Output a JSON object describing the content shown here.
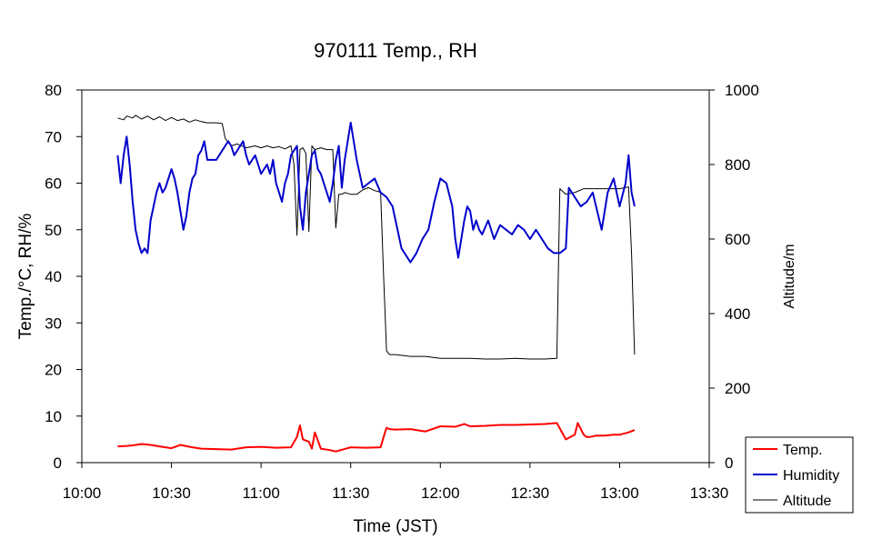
{
  "chart_data": {
    "type": "line",
    "title": "970111 Temp., RH",
    "xlabel": "Time (JST)",
    "ylabel_left": "Temp./°C, RH/%",
    "ylabel_right": "Altitude/m",
    "x_ticks": [
      "10:00",
      "10:30",
      "11:00",
      "11:30",
      "12:00",
      "12:30",
      "13:00",
      "13:30"
    ],
    "xlim_minutes_after_10": [
      0,
      210
    ],
    "y_left_ticks": [
      "0",
      "10",
      "20",
      "30",
      "40",
      "50",
      "60",
      "70",
      "80"
    ],
    "ylim_left": [
      0,
      80
    ],
    "y_right_ticks": [
      "0",
      "200",
      "400",
      "600",
      "800",
      "1000"
    ],
    "ylim_right": [
      0,
      1000
    ],
    "grid": false,
    "legend_position": "bottom-right",
    "series": [
      {
        "name": "Temp.",
        "axis": "left",
        "color": "#ff0000",
        "x": [
          12,
          15,
          17,
          20,
          23,
          26,
          30,
          33,
          37,
          40,
          45,
          50,
          55,
          60,
          65,
          70,
          72,
          73,
          74,
          76,
          77,
          78,
          80,
          83,
          85,
          90,
          95,
          100,
          101,
          102,
          103,
          105,
          110,
          115,
          120,
          125,
          128,
          130,
          135,
          140,
          145,
          150,
          155,
          159,
          162,
          165,
          166,
          168,
          169,
          170,
          172,
          175,
          178,
          180,
          183,
          185
        ],
        "y": [
          3.5,
          3.6,
          3.7,
          4.0,
          3.8,
          3.5,
          3.1,
          3.8,
          3.3,
          3.0,
          2.9,
          2.8,
          3.3,
          3.4,
          3.2,
          3.3,
          5.5,
          8.0,
          5.0,
          4.5,
          3.0,
          6.5,
          3.0,
          2.7,
          2.4,
          3.3,
          3.2,
          3.3,
          5.5,
          7.5,
          7.2,
          7.1,
          7.2,
          6.7,
          7.8,
          7.7,
          8.3,
          7.8,
          7.9,
          8.1,
          8.1,
          8.2,
          8.3,
          8.5,
          5.0,
          6.0,
          8.5,
          6.0,
          5.5,
          5.5,
          5.8,
          5.8,
          6.0,
          6.0,
          6.5,
          7.0
        ]
      },
      {
        "name": "Humidity",
        "axis": "left",
        "color": "#0000cc",
        "x": [
          12,
          13,
          14,
          15,
          16,
          17,
          18,
          19,
          20,
          21,
          22,
          23,
          24,
          25,
          26,
          27,
          28,
          30,
          31,
          32,
          33,
          34,
          35,
          36,
          37,
          38,
          39,
          40,
          41,
          42,
          44,
          45,
          46,
          47,
          48,
          49,
          50,
          51,
          52,
          53,
          54,
          55,
          56,
          57,
          58,
          59,
          60,
          61,
          62,
          63,
          64,
          65,
          66,
          67,
          68,
          69,
          70,
          71,
          72,
          73,
          74,
          75,
          76,
          77,
          78,
          79,
          80,
          81,
          82,
          83,
          84,
          85,
          86,
          87,
          88,
          90,
          92,
          94,
          96,
          98,
          100,
          102,
          103,
          104,
          105,
          107,
          110,
          112,
          114,
          116,
          118,
          120,
          122,
          124,
          125,
          126,
          127,
          128,
          129,
          130,
          131,
          132,
          133,
          134,
          136,
          138,
          140,
          142,
          144,
          146,
          148,
          150,
          152,
          154,
          156,
          158,
          160,
          162,
          163,
          165,
          167,
          169,
          171,
          174,
          176,
          178,
          180,
          182,
          183,
          184,
          185
        ],
        "y": [
          66,
          60,
          66,
          70,
          64,
          56,
          50,
          47,
          45,
          46,
          45,
          52,
          55,
          58,
          60,
          58,
          59,
          63,
          61,
          58,
          54,
          50,
          53,
          58,
          61,
          62,
          66,
          67,
          69,
          65,
          65,
          65,
          66,
          67,
          68,
          69,
          68,
          66,
          67,
          68,
          69,
          66,
          64,
          65,
          66,
          64,
          62,
          63,
          64,
          62,
          65,
          60,
          58,
          56,
          60,
          62,
          66,
          67,
          68,
          55,
          50,
          58,
          62,
          66,
          67,
          63,
          62,
          60,
          58,
          56,
          60,
          65,
          68,
          59,
          65,
          73,
          65,
          59,
          60,
          61,
          58,
          57,
          56,
          55,
          52,
          46,
          43,
          45,
          48,
          50,
          56,
          61,
          60,
          55,
          48,
          44,
          48,
          52,
          55,
          54,
          50,
          52,
          50,
          49,
          52,
          48,
          51,
          50,
          49,
          51,
          50,
          48,
          50,
          48,
          46,
          45,
          45,
          46,
          59,
          57,
          55,
          56,
          58,
          50,
          58,
          61,
          55,
          60,
          66,
          58,
          55
        ]
      },
      {
        "name": "Altitude",
        "axis": "right",
        "color": "#000000",
        "x": [
          12,
          14,
          15,
          17,
          18,
          20,
          22,
          24,
          26,
          28,
          30,
          32,
          34,
          36,
          38,
          40,
          42,
          45,
          47,
          48,
          50,
          52,
          55,
          58,
          60,
          62,
          64,
          66,
          68,
          70,
          71,
          72,
          73,
          74,
          75,
          76,
          77,
          78,
          80,
          82,
          84,
          85,
          86,
          87,
          88,
          90,
          92,
          94,
          96,
          98,
          99,
          100,
          101,
          102,
          103,
          105,
          110,
          115,
          120,
          125,
          130,
          135,
          140,
          145,
          150,
          155,
          159,
          160,
          162,
          165,
          168,
          170,
          175,
          180,
          183,
          184,
          185
        ],
        "y": [
          925,
          920,
          930,
          925,
          932,
          922,
          930,
          920,
          928,
          918,
          926,
          918,
          922,
          914,
          920,
          915,
          912,
          912,
          910,
          870,
          850,
          855,
          845,
          850,
          845,
          850,
          845,
          848,
          842,
          850,
          800,
          610,
          840,
          845,
          830,
          620,
          850,
          840,
          845,
          840,
          840,
          630,
          720,
          720,
          725,
          720,
          720,
          732,
          738,
          730,
          728,
          725,
          500,
          300,
          290,
          290,
          285,
          285,
          280,
          280,
          280,
          278,
          278,
          280,
          278,
          278,
          280,
          735,
          720,
          725,
          735,
          735,
          735,
          735,
          740,
          560,
          290
        ]
      }
    ]
  }
}
